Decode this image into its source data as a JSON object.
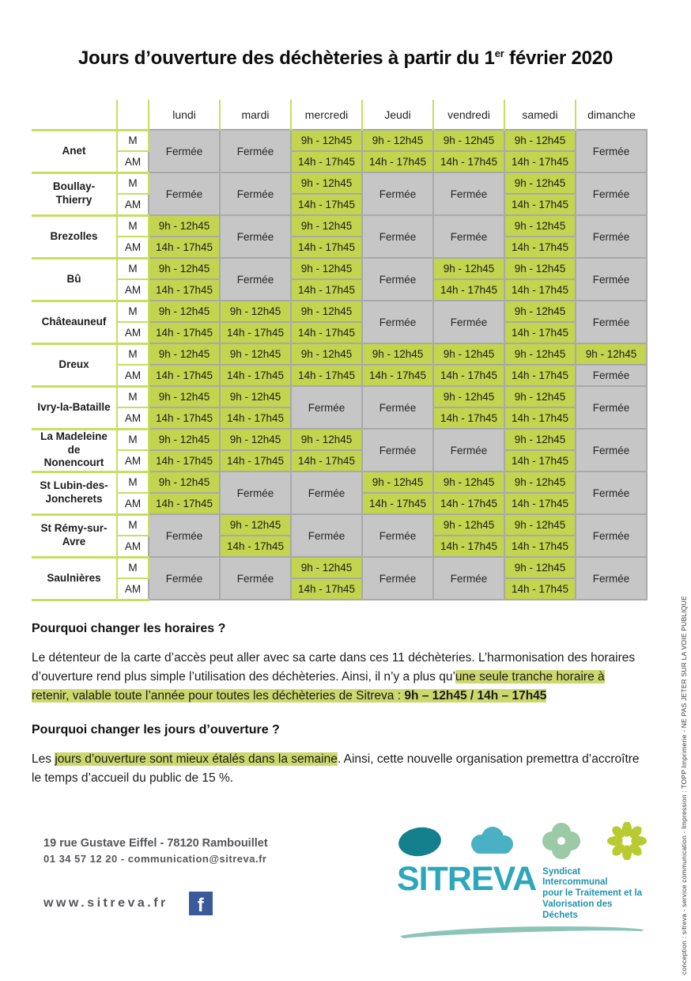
{
  "title": {
    "text_before": "Jours d’ouverture des déchèteries à partir du 1",
    "superscript": "er",
    "text_after": " février 2020"
  },
  "table": {
    "day_headers": [
      "lundi",
      "mardi",
      "mercredi",
      "Jeudi",
      "vendredi",
      "samedi",
      "dimanche"
    ],
    "row_labels": {
      "m": "M",
      "am": "AM"
    },
    "open_morning": "9h - 12h45",
    "open_afternoon": "14h - 17h45",
    "closed": "Fermée",
    "locations": [
      {
        "name": "Anet",
        "days": [
          "closed",
          "closed",
          "open",
          "open",
          "open",
          "open",
          "closed"
        ]
      },
      {
        "name": "Boullay-\nThierry",
        "days": [
          "closed",
          "closed",
          "open",
          "closed",
          "closed",
          "open",
          "closed"
        ]
      },
      {
        "name": "Brezolles",
        "days": [
          "open",
          "closed",
          "open",
          "closed",
          "closed",
          "open",
          "closed"
        ]
      },
      {
        "name": "Bû",
        "days": [
          "open",
          "closed",
          "open",
          "closed",
          "open",
          "open",
          "closed"
        ]
      },
      {
        "name": "Châteauneuf",
        "days": [
          "open",
          "open",
          "open",
          "closed",
          "closed",
          "open",
          "closed"
        ]
      },
      {
        "name": "Dreux",
        "days": [
          "open",
          "open",
          "open",
          "open",
          "open",
          "open",
          "m_only"
        ]
      },
      {
        "name": "Ivry-la-Bataille",
        "days": [
          "open",
          "open",
          "closed",
          "closed",
          "open",
          "open",
          "closed"
        ]
      },
      {
        "name": "La Madeleine\nde\nNonencourt",
        "days": [
          "open",
          "open",
          "open",
          "closed",
          "closed",
          "open",
          "closed"
        ]
      },
      {
        "name": "St Lubin-des-\nJoncherets",
        "days": [
          "open",
          "closed",
          "closed",
          "open",
          "open",
          "open",
          "closed"
        ]
      },
      {
        "name": "St Rémy-sur-\nAvre",
        "days": [
          "closed",
          "open",
          "closed",
          "closed",
          "open",
          "open",
          "closed"
        ]
      },
      {
        "name": "Saulnières",
        "days": [
          "closed",
          "closed",
          "open",
          "closed",
          "closed",
          "open",
          "closed"
        ]
      }
    ]
  },
  "sections": {
    "horaires": {
      "heading": "Pourquoi changer les horaires ?",
      "parts": [
        {
          "style": "normal",
          "text": "Le détenteur de la carte d’accès peut aller avec sa carte dans ces 11 déchèteries. L’harmonisation des horaires d’ouverture rend plus simple l’utilisation des déchèteries. Ainsi, il n’y a plus qu’"
        },
        {
          "style": "highlight",
          "text": "une seule tranche horaire à retenir, valable toute l’année pour toutes les déchèteries de Sitreva : "
        },
        {
          "style": "highlight_bold",
          "text": "9h – 12h45 / 14h – 17h45"
        }
      ]
    },
    "jours": {
      "heading": "Pourquoi changer les jours d’ouverture ?",
      "parts": [
        {
          "style": "normal",
          "text": "Les "
        },
        {
          "style": "highlight",
          "text": "jours d’ouverture sont mieux étalés dans la semaine"
        },
        {
          "style": "normal",
          "text": ". Ainsi, cette nouvelle organisation premettra d’accroître le temps d’accueil du public de 15 %."
        }
      ]
    }
  },
  "footer": {
    "address_line1": "19 rue Gustave Eiffel - 78120 Rambouillet",
    "address_line2": "01 34 57 12 20 - communication@sitreva.fr",
    "website": "www.sitreva.fr",
    "facebook_letter": "f",
    "logo": {
      "name": "SITREVA",
      "tagline": [
        "Syndicat Intercommunal",
        "pour le Traitement et la",
        "Valorisation des Déchets"
      ]
    }
  },
  "side_text": "conception : sitreva - service communication - Impression : TOPP Imprimerie  - NE PAS JETER SUR LA VOIE PUBLIQUE",
  "colors": {
    "open_cell": "#c3d44f",
    "closed_cell": "#c6c6c6",
    "highlight": "#ccd86e",
    "logo_teal": "#2ea6bc",
    "pebble": "#15808d",
    "cloud": "#4ab1c4",
    "clover": "#9ccaa6",
    "flower": "#b9cb32",
    "brush": "#8cc4b9",
    "facebook_blue": "#3a5a9a"
  }
}
